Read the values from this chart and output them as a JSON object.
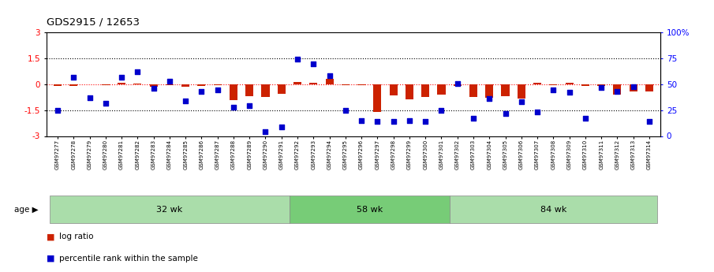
{
  "title": "GDS2915 / 12653",
  "samples": [
    "GSM97277",
    "GSM97278",
    "GSM97279",
    "GSM97280",
    "GSM97281",
    "GSM97282",
    "GSM97283",
    "GSM97284",
    "GSM97285",
    "GSM97286",
    "GSM97287",
    "GSM97288",
    "GSM97289",
    "GSM97290",
    "GSM97291",
    "GSM97292",
    "GSM97293",
    "GSM97294",
    "GSM97295",
    "GSM97296",
    "GSM97297",
    "GSM97298",
    "GSM97299",
    "GSM97300",
    "GSM97301",
    "GSM97302",
    "GSM97303",
    "GSM97304",
    "GSM97305",
    "GSM97306",
    "GSM97307",
    "GSM97308",
    "GSM97309",
    "GSM97310",
    "GSM97311",
    "GSM97312",
    "GSM97313",
    "GSM97314"
  ],
  "log_ratio": [
    -0.1,
    -0.08,
    0.0,
    -0.04,
    0.07,
    0.05,
    -0.12,
    -0.04,
    -0.15,
    -0.08,
    -0.06,
    -0.9,
    -0.7,
    -0.75,
    -0.55,
    0.15,
    0.1,
    0.3,
    -0.05,
    -0.04,
    -1.62,
    -0.65,
    -0.85,
    -0.72,
    -0.62,
    -0.08,
    -0.72,
    -0.78,
    -0.68,
    -0.82,
    0.1,
    -0.04,
    0.07,
    -0.08,
    -0.1,
    -0.6,
    -0.42,
    -0.42
  ],
  "percentile": [
    25,
    57,
    37,
    32,
    57,
    62,
    46,
    53,
    34,
    43,
    45,
    28,
    29,
    4,
    9,
    74,
    70,
    58,
    25,
    15,
    14,
    14,
    15,
    14,
    25,
    51,
    17,
    36,
    22,
    33,
    23,
    45,
    42,
    17,
    47,
    43,
    48,
    14
  ],
  "groups": [
    {
      "label": "32 wk",
      "start": 0,
      "end": 15
    },
    {
      "label": "58 wk",
      "start": 15,
      "end": 25
    },
    {
      "label": "84 wk",
      "start": 25,
      "end": 38
    }
  ],
  "group_colors": [
    "#aaddaa",
    "#77cc77",
    "#aaddaa"
  ],
  "ylim": [
    -3,
    3
  ],
  "yticks_left": [
    -3,
    -1.5,
    0,
    1.5,
    3
  ],
  "yticks_right": [
    0,
    25,
    50,
    75,
    100
  ],
  "bar_color": "#CC2200",
  "dot_color": "#0000CC",
  "background_color": "#ffffff",
  "age_label": "age"
}
